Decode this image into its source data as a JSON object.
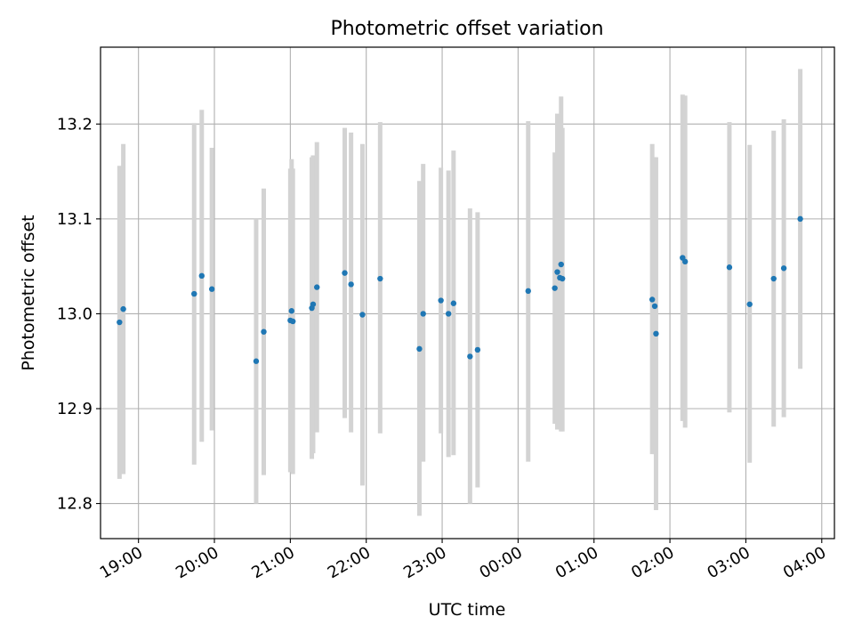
{
  "chart_data": {
    "type": "scatter",
    "title": "Photometric offset variation",
    "xlabel": "UTC time",
    "ylabel": "Photometric offset",
    "x_tick_labels": [
      "19:00",
      "20:00",
      "21:00",
      "22:00",
      "23:00",
      "00:00",
      "01:00",
      "02:00",
      "03:00",
      "04:00"
    ],
    "y_tick_labels": [
      "12.8",
      "12.9",
      "13.0",
      "13.1",
      "13.2"
    ],
    "xlim": [
      "18:30",
      "04:10"
    ],
    "ylim": [
      12.763,
      13.281
    ],
    "grid": true,
    "point_color": "#1f77b4",
    "errorbar_color": "#d3d3d3",
    "points": [
      {
        "t": "18:45",
        "y": 12.991,
        "ylo": 12.826,
        "yhi": 13.156
      },
      {
        "t": "18:48",
        "y": 13.005,
        "ylo": 12.831,
        "yhi": 13.179
      },
      {
        "t": "19:44",
        "y": 13.021,
        "ylo": 12.841,
        "yhi": 13.201
      },
      {
        "t": "19:50",
        "y": 13.04,
        "ylo": 12.865,
        "yhi": 13.215
      },
      {
        "t": "19:58",
        "y": 13.026,
        "ylo": 12.877,
        "yhi": 13.175
      },
      {
        "t": "20:33",
        "y": 12.95,
        "ylo": 12.8,
        "yhi": 13.1
      },
      {
        "t": "20:39",
        "y": 12.981,
        "ylo": 12.83,
        "yhi": 13.132
      },
      {
        "t": "21:00",
        "y": 12.993,
        "ylo": 12.833,
        "yhi": 13.153
      },
      {
        "t": "21:01",
        "y": 13.003,
        "ylo": 12.843,
        "yhi": 13.163
      },
      {
        "t": "21:02",
        "y": 12.992,
        "ylo": 12.831,
        "yhi": 13.153
      },
      {
        "t": "21:17",
        "y": 13.006,
        "ylo": 12.847,
        "yhi": 13.165
      },
      {
        "t": "21:18",
        "y": 13.01,
        "ylo": 12.853,
        "yhi": 13.167
      },
      {
        "t": "21:21",
        "y": 13.028,
        "ylo": 12.875,
        "yhi": 13.181
      },
      {
        "t": "21:43",
        "y": 13.043,
        "ylo": 12.89,
        "yhi": 13.196
      },
      {
        "t": "21:48",
        "y": 13.031,
        "ylo": 12.875,
        "yhi": 13.191
      },
      {
        "t": "21:57",
        "y": 12.999,
        "ylo": 12.819,
        "yhi": 13.179
      },
      {
        "t": "22:11",
        "y": 13.037,
        "ylo": 12.874,
        "yhi": 13.202
      },
      {
        "t": "22:42",
        "y": 12.963,
        "ylo": 12.787,
        "yhi": 13.14
      },
      {
        "t": "22:45",
        "y": 13.0,
        "ylo": 12.844,
        "yhi": 13.158
      },
      {
        "t": "22:59",
        "y": 13.014,
        "ylo": 12.874,
        "yhi": 13.154
      },
      {
        "t": "23:05",
        "y": 13.0,
        "ylo": 12.849,
        "yhi": 13.151
      },
      {
        "t": "23:09",
        "y": 13.011,
        "ylo": 12.851,
        "yhi": 13.172
      },
      {
        "t": "23:22",
        "y": 12.955,
        "ylo": 12.8,
        "yhi": 13.111
      },
      {
        "t": "23:28",
        "y": 12.962,
        "ylo": 12.817,
        "yhi": 13.107
      },
      {
        "t": "00:08",
        "y": 13.024,
        "ylo": 12.844,
        "yhi": 13.203
      },
      {
        "t": "00:29",
        "y": 13.027,
        "ylo": 12.884,
        "yhi": 13.17
      },
      {
        "t": "00:31",
        "y": 13.044,
        "ylo": 12.878,
        "yhi": 13.211
      },
      {
        "t": "00:33",
        "y": 13.038,
        "ylo": 12.88,
        "yhi": 13.196
      },
      {
        "t": "00:34",
        "y": 13.052,
        "ylo": 12.876,
        "yhi": 13.229
      },
      {
        "t": "00:35",
        "y": 13.037,
        "ylo": 12.876,
        "yhi": 13.196
      },
      {
        "t": "01:46",
        "y": 13.015,
        "ylo": 12.852,
        "yhi": 13.179
      },
      {
        "t": "01:48",
        "y": 13.008,
        "ylo": 12.852,
        "yhi": 13.165
      },
      {
        "t": "01:49",
        "y": 12.979,
        "ylo": 12.793,
        "yhi": 13.165
      },
      {
        "t": "02:10",
        "y": 13.059,
        "ylo": 12.887,
        "yhi": 13.231
      },
      {
        "t": "02:12",
        "y": 13.055,
        "ylo": 12.88,
        "yhi": 13.23
      },
      {
        "t": "02:47",
        "y": 13.049,
        "ylo": 12.896,
        "yhi": 13.202
      },
      {
        "t": "03:03",
        "y": 13.01,
        "ylo": 12.843,
        "yhi": 13.178
      },
      {
        "t": "03:22",
        "y": 13.037,
        "ylo": 12.881,
        "yhi": 13.193
      },
      {
        "t": "03:30",
        "y": 13.048,
        "ylo": 12.891,
        "yhi": 13.205
      },
      {
        "t": "03:43",
        "y": 13.1,
        "ylo": 12.942,
        "yhi": 13.258
      }
    ]
  }
}
